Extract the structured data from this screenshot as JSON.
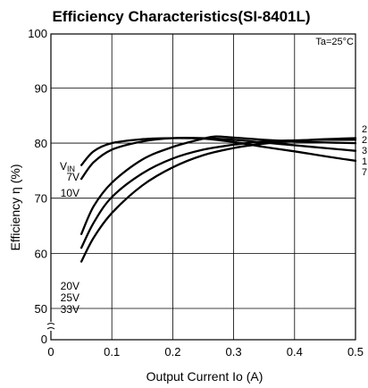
{
  "chart_data": {
    "type": "line",
    "title": "Efficiency Characteristics(SI-8401L)",
    "xlabel": "Output Current Io (A)",
    "ylabel": "Efficiency η (%)",
    "condition": "Ta=25°C",
    "xlim": [
      0,
      0.5
    ],
    "ylim": [
      45,
      100
    ],
    "axis_break": true,
    "grid": true,
    "x_ticks": [
      "0",
      "0.1",
      "0.2",
      "0.3",
      "0.4",
      "0.5"
    ],
    "y_ticks": [
      "0",
      "50",
      "60",
      "70",
      "80",
      "90",
      "100"
    ],
    "legend_left": {
      "header": "VIN",
      "entries": [
        "7V",
        "10V",
        "20V",
        "25V",
        "33V"
      ]
    },
    "right_labels": [
      "2",
      "2",
      "3",
      "1",
      "7"
    ],
    "series": [
      {
        "name": "7V",
        "x": [
          0.05,
          0.07,
          0.1,
          0.15,
          0.2,
          0.25,
          0.3,
          0.35,
          0.4,
          0.45,
          0.5
        ],
        "y": [
          76,
          78.5,
          80,
          80.7,
          80.9,
          80.8,
          80.2,
          79.3,
          78.5,
          77.6,
          76.8
        ]
      },
      {
        "name": "10V",
        "x": [
          0.05,
          0.07,
          0.1,
          0.15,
          0.2,
          0.25,
          0.3,
          0.35,
          0.4,
          0.45,
          0.5
        ],
        "y": [
          73.5,
          76.5,
          78.8,
          80.3,
          80.9,
          80.9,
          80.6,
          80.1,
          79.6,
          79.1,
          78.6
        ]
      },
      {
        "name": "20V",
        "x": [
          0.05,
          0.07,
          0.1,
          0.15,
          0.2,
          0.25,
          0.27,
          0.3,
          0.35,
          0.4,
          0.45,
          0.5
        ],
        "y": [
          63.5,
          68.5,
          72.8,
          77,
          79.3,
          80.8,
          81.2,
          81,
          80.6,
          80.3,
          80.1,
          80.0
        ]
      },
      {
        "name": "25V",
        "x": [
          0.05,
          0.07,
          0.1,
          0.15,
          0.2,
          0.25,
          0.3,
          0.35,
          0.4,
          0.45,
          0.5
        ],
        "y": [
          61,
          65.5,
          70.2,
          74.5,
          77.2,
          78.8,
          79.7,
          80.3,
          80.5,
          80.6,
          80.6
        ]
      },
      {
        "name": "33V",
        "x": [
          0.05,
          0.07,
          0.1,
          0.15,
          0.2,
          0.25,
          0.3,
          0.35,
          0.4,
          0.45,
          0.5
        ],
        "y": [
          58.5,
          62.8,
          67.3,
          72.3,
          75.6,
          77.8,
          79.1,
          79.9,
          80.4,
          80.7,
          80.9
        ]
      }
    ]
  }
}
